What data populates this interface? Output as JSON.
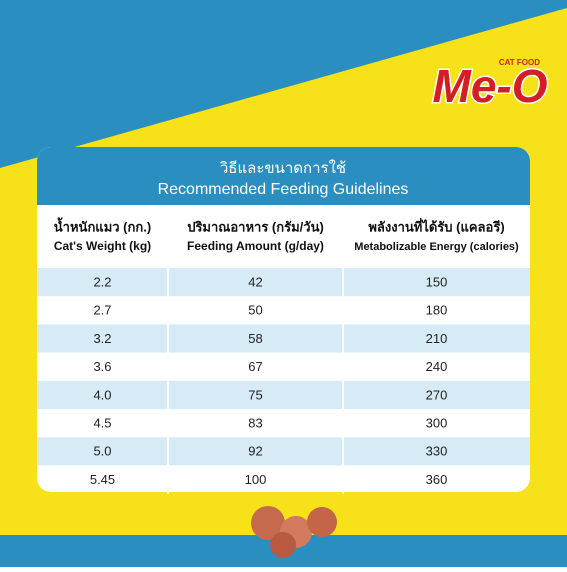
{
  "logo": {
    "brand": "Me-O",
    "tagline": "CAT FOOD"
  },
  "table": {
    "title_th": "วิธีและขนาดการใช้",
    "title_en": "Recommended Feeding Guidelines",
    "headers": [
      {
        "th": "น้ำหนักแมว (กก.)",
        "en": "Cat's Weight (kg)"
      },
      {
        "th": "ปริมาณอาหาร (กรัม/วัน)",
        "en": "Feeding Amount (g/day)"
      },
      {
        "th": "พลังงานที่ได้รับ (แคลอรี)",
        "en": "Metabolizable Energy (calories)"
      }
    ],
    "rows": [
      [
        "2.2",
        "42",
        "150"
      ],
      [
        "2.7",
        "50",
        "180"
      ],
      [
        "3.2",
        "58",
        "210"
      ],
      [
        "3.6",
        "67",
        "240"
      ],
      [
        "4.0",
        "75",
        "270"
      ],
      [
        "4.5",
        "83",
        "300"
      ],
      [
        "5.0",
        "92",
        "330"
      ],
      [
        "5.45",
        "100",
        "360"
      ]
    ]
  }
}
